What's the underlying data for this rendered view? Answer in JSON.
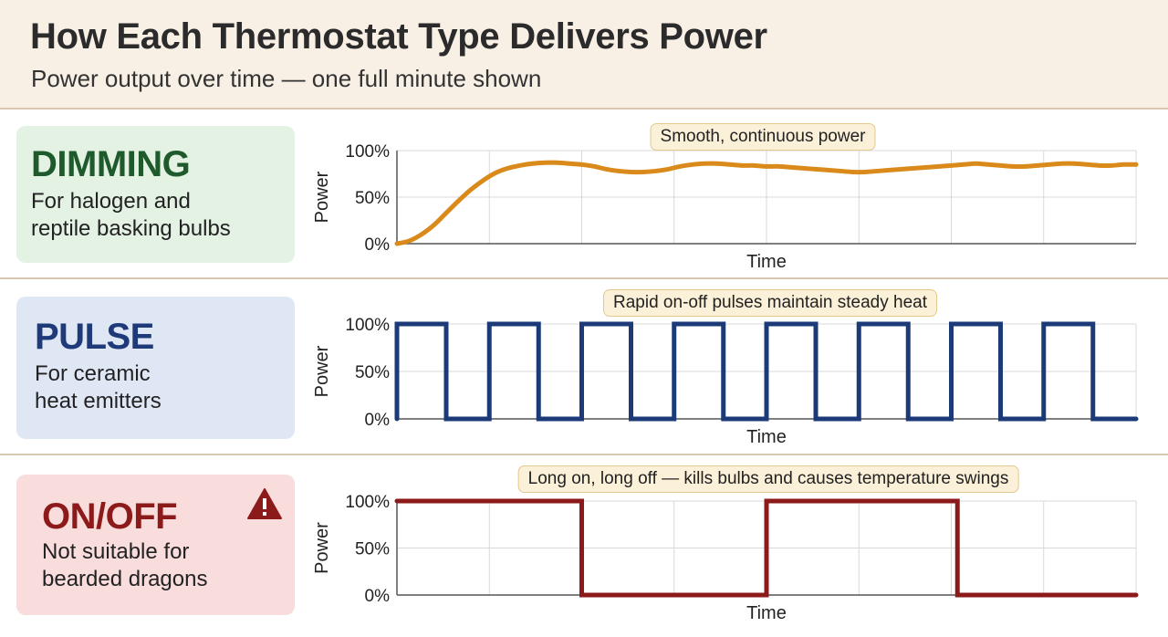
{
  "header": {
    "title": "How Each Thermostat Type Delivers Power",
    "subtitle": "Power output over time — one full minute shown"
  },
  "cards": [
    {
      "title": "DIMMING",
      "description": "For halogen and\nreptile basking bulbs",
      "bg": "#e3f2e3",
      "title_color": "#1f5a2c"
    },
    {
      "title": "PULSE",
      "description": "For ceramic\nheat emitters",
      "bg": "#dfe7f5",
      "title_color": "#1e3a78"
    },
    {
      "title": "ON/OFF",
      "description": "Not suitable for\nbearded dragons",
      "bg": "#f9dcdc",
      "title_color": "#8c1a1a",
      "icon": "warning-icon"
    }
  ],
  "chart_data": [
    {
      "type": "line",
      "annotation": "Smooth, continuous power",
      "xlabel": "Time",
      "ylabel": "Power",
      "yticks": [
        "0%",
        "50%",
        "100%"
      ],
      "ylim": [
        0,
        100
      ],
      "xlim": [
        0,
        60
      ],
      "grid": true,
      "color": "#d98a1a",
      "x": [
        0,
        1,
        2,
        3,
        4,
        5,
        6,
        7,
        8,
        9,
        10,
        11,
        12,
        13,
        14,
        15,
        16,
        17,
        18,
        19,
        20,
        21,
        22,
        23,
        24,
        25,
        26,
        27,
        28,
        29,
        30,
        31,
        32,
        33,
        34,
        35,
        36,
        37,
        38,
        39,
        40,
        41,
        42,
        43,
        44,
        45,
        46,
        47,
        48,
        49,
        50,
        51,
        52,
        53,
        54,
        55,
        56,
        57,
        58,
        59,
        60
      ],
      "y": [
        0,
        3,
        10,
        20,
        33,
        46,
        58,
        68,
        76,
        81,
        84,
        86,
        87,
        87,
        86,
        85,
        83,
        80,
        78,
        77,
        77,
        78,
        80,
        83,
        85,
        86,
        86,
        85,
        84,
        84,
        83,
        83,
        82,
        81,
        80,
        79,
        78,
        77,
        77,
        78,
        79,
        80,
        81,
        82,
        83,
        84,
        85,
        86,
        85,
        84,
        83,
        83,
        84,
        85,
        86,
        86,
        85,
        84,
        84,
        85,
        85
      ]
    },
    {
      "type": "line",
      "annotation": "Rapid on-off pulses maintain steady heat",
      "xlabel": "Time",
      "ylabel": "Power",
      "yticks": [
        "0%",
        "50%",
        "100%"
      ],
      "ylim": [
        0,
        100
      ],
      "xlim": [
        0,
        60
      ],
      "grid": true,
      "color": "#1c3a78",
      "x": [
        0,
        0,
        4,
        4,
        7.5,
        7.5,
        11.5,
        11.5,
        15,
        15,
        19,
        19,
        22.5,
        22.5,
        26.5,
        26.5,
        30,
        30,
        34,
        34,
        37.5,
        37.5,
        41.5,
        41.5,
        45,
        45,
        49,
        49,
        52.5,
        52.5,
        56.5,
        56.5,
        60
      ],
      "y": [
        0,
        100,
        100,
        0,
        0,
        100,
        100,
        0,
        0,
        100,
        100,
        0,
        0,
        100,
        100,
        0,
        0,
        100,
        100,
        0,
        0,
        100,
        100,
        0,
        0,
        100,
        100,
        0,
        0,
        100,
        100,
        0,
        0
      ]
    },
    {
      "type": "line",
      "annotation": "Long on, long off — kills bulbs and causes temperature swings",
      "xlabel": "Time",
      "ylabel": "Power",
      "yticks": [
        "0%",
        "50%",
        "100%"
      ],
      "ylim": [
        0,
        100
      ],
      "xlim": [
        0,
        60
      ],
      "grid": true,
      "color": "#8c1a1a",
      "x": [
        0,
        15,
        15,
        30,
        30,
        45.5,
        45.5,
        60
      ],
      "y": [
        100,
        100,
        0,
        0,
        100,
        100,
        0,
        0
      ]
    }
  ]
}
